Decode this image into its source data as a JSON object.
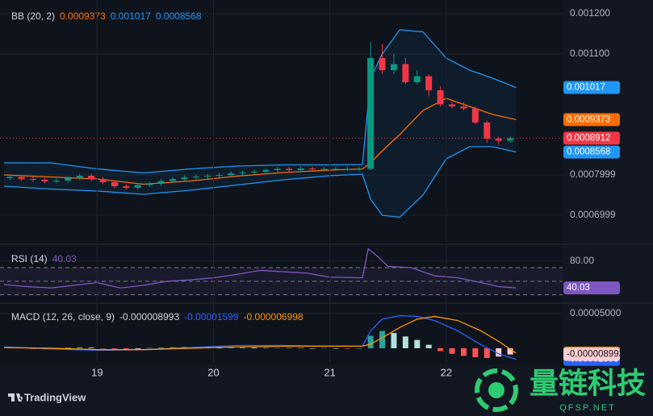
{
  "chart_data": [
    {
      "type": "candlestick",
      "title": "BB (20, 2)",
      "x": [
        18.25,
        18.35,
        18.45,
        18.55,
        18.65,
        18.75,
        18.85,
        18.95,
        19.05,
        19.15,
        19.25,
        19.35,
        19.45,
        19.55,
        19.65,
        19.75,
        19.85,
        19.95,
        20.05,
        20.15,
        20.25,
        20.35,
        20.45,
        20.55,
        20.65,
        20.75,
        20.85,
        20.95,
        21.05,
        21.15,
        21.25,
        21.35,
        21.45,
        21.55,
        21.65,
        21.75,
        21.85,
        21.95,
        22.05,
        22.15,
        22.25,
        22.35,
        22.45,
        22.55
      ],
      "open": [
        0.000792,
        0.000795,
        0.00079,
        0.000788,
        0.000784,
        0.000786,
        0.000792,
        0.000798,
        0.00079,
        0.000782,
        0.000772,
        0.000768,
        0.000775,
        0.000778,
        0.000785,
        0.00079,
        0.000794,
        0.000796,
        0.000798,
        0.0008,
        0.000804,
        0.000806,
        0.000808,
        0.000812,
        0.000815,
        0.000812,
        0.000816,
        0.000814,
        0.000815,
        0.000815,
        0.000815,
        0.000815,
        0.00109,
        0.00106,
        0.001075,
        0.00103,
        0.001045,
        0.00101,
        0.000975,
        0.00097,
        0.000965,
        0.00093,
        0.00089,
        0.000885
      ],
      "high": [
        0.0008,
        0.0008,
        0.000795,
        0.000793,
        0.000791,
        0.000797,
        0.000803,
        0.000803,
        0.000795,
        0.000787,
        0.000777,
        0.00078,
        0.000783,
        0.00079,
        0.000795,
        0.000799,
        0.000801,
        0.000803,
        0.000805,
        0.000809,
        0.000811,
        0.000813,
        0.000817,
        0.00082,
        0.00082,
        0.000821,
        0.000821,
        0.00082,
        0.00082,
        0.00082,
        0.00082,
        0.00113,
        0.001125,
        0.0011,
        0.00109,
        0.00106,
        0.00105,
        0.00102,
        0.00098,
        0.00098,
        0.00097,
        0.000935,
        0.000895,
        0.000896
      ],
      "low": [
        0.000787,
        0.000785,
        0.000783,
        0.000779,
        0.000779,
        0.000781,
        0.000787,
        0.000785,
        0.000777,
        0.000767,
        0.000763,
        0.000763,
        0.00077,
        0.000773,
        0.00078,
        0.000785,
        0.000789,
        0.000791,
        0.000793,
        0.000795,
        0.000799,
        0.000801,
        0.000803,
        0.000807,
        0.000807,
        0.000807,
        0.000809,
        0.000809,
        0.00081,
        0.00081,
        0.00081,
        0.000812,
        0.00105,
        0.00105,
        0.001025,
        0.001025,
        0.000995,
        0.00097,
        0.000965,
        0.00096,
        0.000925,
        0.00088,
        0.000875,
        0.00088
      ],
      "close": [
        0.000795,
        0.00079,
        0.000788,
        0.000784,
        0.000786,
        0.000792,
        0.000798,
        0.00079,
        0.000782,
        0.000772,
        0.000768,
        0.000775,
        0.000778,
        0.000785,
        0.00079,
        0.000794,
        0.000796,
        0.000798,
        0.0008,
        0.000804,
        0.000806,
        0.000808,
        0.000812,
        0.000815,
        0.000812,
        0.000816,
        0.000814,
        0.000815,
        0.000815,
        0.000815,
        0.000815,
        0.00109,
        0.00106,
        0.001075,
        0.00103,
        0.001045,
        0.00101,
        0.000975,
        0.00097,
        0.000965,
        0.00093,
        0.00089,
        0.000885,
        0.0008912
      ],
      "up_color": "#089981",
      "down_color": "#f23645",
      "series": [
        {
          "color": "#ff6d00",
          "x": [
            18.2,
            18.6,
            19.0,
            19.4,
            19.8,
            20.2,
            20.6,
            21.0,
            21.28,
            21.35,
            21.45,
            21.6,
            21.8,
            22.0,
            22.2,
            22.4,
            22.6
          ],
          "values": [
            0.0008,
            0.000795,
            0.00079,
            0.000777,
            0.000785,
            0.000797,
            0.000806,
            0.000812,
            0.000815,
            0.00083,
            0.00086,
            0.0009,
            0.00096,
            0.00099,
            0.00097,
            0.00095,
            0.0009373
          ]
        },
        {
          "color": "#2196f3",
          "x": [
            18.2,
            18.6,
            19.0,
            19.4,
            19.8,
            20.2,
            20.6,
            21.0,
            21.28,
            21.35,
            21.45,
            21.6,
            21.8,
            22.0,
            22.2,
            22.4,
            22.6
          ],
          "values": [
            0.00083,
            0.00083,
            0.000815,
            0.000805,
            0.000815,
            0.000822,
            0.000825,
            0.000825,
            0.000826,
            0.00104,
            0.0011,
            0.00116,
            0.001155,
            0.00109,
            0.00106,
            0.00104,
            0.001017
          ]
        },
        {
          "color": "#2196f3",
          "x": [
            18.2,
            18.6,
            19.0,
            19.4,
            19.8,
            20.2,
            20.6,
            21.0,
            21.28,
            21.35,
            21.45,
            21.6,
            21.8,
            22.0,
            22.2,
            22.4,
            22.6
          ],
          "values": [
            0.000772,
            0.000765,
            0.00076,
            0.000752,
            0.000762,
            0.000775,
            0.000788,
            0.000798,
            0.000802,
            0.00074,
            0.0007,
            0.000695,
            0.00075,
            0.00084,
            0.00087,
            0.00087,
            0.0008568
          ]
        }
      ],
      "band_fill": "rgba(33,150,243,0.07)",
      "xlim": [
        18.2,
        23.0
      ],
      "ylim": [
        0.000634,
        0.001224
      ],
      "yticks": [
        {
          "value": 0.0012,
          "label": "0.001200"
        },
        {
          "value": 0.0011,
          "label": "0.001100"
        },
        {
          "value": 0.0007999,
          "label": "0.0007999"
        },
        {
          "value": 0.0006999,
          "label": "0.0006999"
        }
      ],
      "grid": true
    },
    {
      "type": "line",
      "title": "RSI (14)",
      "series": [
        {
          "color": "#7e57c2",
          "x": [
            18.2,
            18.4,
            18.6,
            18.8,
            19.0,
            19.2,
            19.4,
            19.6,
            19.8,
            20.0,
            20.2,
            20.4,
            20.6,
            20.8,
            21.0,
            21.28,
            21.33,
            21.4,
            21.5,
            21.7,
            21.9,
            22.1,
            22.3,
            22.45,
            22.6
          ],
          "values": [
            45,
            42,
            40,
            44,
            48,
            40,
            44,
            50,
            52,
            55,
            60,
            66,
            64,
            62,
            56,
            55,
            98,
            88,
            72,
            70,
            58,
            55,
            48,
            42,
            40.03
          ]
        }
      ],
      "levels": [
        70,
        50,
        30
      ],
      "band_fill": "rgba(126,87,194,0.1)",
      "xlim": [
        18.2,
        23.0
      ],
      "ylim": [
        20,
        101
      ],
      "yticks": [
        {
          "value": 80,
          "label": "80.00"
        }
      ],
      "grid": true
    },
    {
      "type": "macd",
      "title": "MACD (12, 26, close, 9)",
      "histogram": {
        "colors": [
          "#26a69a",
          "#b2dfdb",
          "#ff5252",
          "#ffcdd2"
        ],
        "x": [
          18.25,
          18.35,
          18.45,
          18.55,
          18.65,
          18.75,
          18.85,
          18.95,
          19.05,
          19.15,
          19.25,
          19.35,
          19.45,
          19.55,
          19.65,
          19.75,
          19.85,
          19.95,
          20.05,
          20.15,
          20.25,
          20.35,
          20.45,
          20.55,
          20.65,
          20.75,
          20.85,
          20.95,
          21.05,
          21.15,
          21.25,
          21.35,
          21.45,
          21.55,
          21.65,
          21.75,
          21.85,
          21.95,
          22.05,
          22.15,
          22.25,
          22.35,
          22.45,
          22.55
        ],
        "values": [
          1e-06,
          5e-07,
          -1e-06,
          -1.5e-06,
          -1e-06,
          1e-06,
          1.5e-06,
          1e-06,
          -5e-07,
          -1e-06,
          -1.5e-06,
          -1e-06,
          5e-07,
          1e-06,
          1.5e-06,
          2e-06,
          2e-06,
          1.5e-06,
          1e-06,
          1e-06,
          1.5e-06,
          1e-06,
          5e-07,
          5e-07,
          1e-06,
          5e-07,
          0,
          5e-07,
          0,
          -5e-07,
          0,
          1.8e-05,
          2.5e-05,
          2.2e-05,
          1.7e-05,
          1.2e-05,
          5e-06,
          -4e-06,
          -8e-06,
          -1.1e-05,
          -1.3e-05,
          -1.4e-05,
          -1.2e-05,
          -8.993e-06
        ]
      },
      "series": [
        {
          "color": "#2962ff",
          "x": [
            18.2,
            18.6,
            19.0,
            19.4,
            19.8,
            20.2,
            20.6,
            21.0,
            21.28,
            21.35,
            21.45,
            21.6,
            21.75,
            21.9,
            22.1,
            22.3,
            22.45,
            22.6
          ],
          "values": [
            2e-06,
            -1e-06,
            -3e-06,
            -2e-06,
            1e-06,
            4e-06,
            4e-06,
            3e-06,
            3e-06,
            2.5e-05,
            4.2e-05,
            4.7e-05,
            4.6e-05,
            4e-05,
            2.5e-05,
            5e-06,
            -8e-06,
            -1.599e-05
          ]
        },
        {
          "color": "#ff9800",
          "x": [
            18.2,
            18.6,
            19.0,
            19.4,
            19.8,
            20.2,
            20.6,
            21.0,
            21.28,
            21.35,
            21.45,
            21.6,
            21.75,
            21.9,
            22.1,
            22.3,
            22.45,
            22.6
          ],
          "values": [
            1e-06,
            0,
            -2e-06,
            -2e-06,
            0,
            2e-06,
            3e-06,
            3e-06,
            3e-06,
            6e-06,
            1.5e-05,
            3e-05,
            4.2e-05,
            4.6e-05,
            4e-05,
            2.5e-05,
            1e-05,
            -6.998e-06
          ]
        }
      ],
      "xlim": [
        18.2,
        23.0
      ],
      "ylim": [
        -2.1e-05,
        6.28e-05
      ],
      "yticks": [
        {
          "value": 5e-05,
          "label": "0.00005000"
        }
      ],
      "xticks": [
        19,
        20,
        21,
        22
      ],
      "grid": true
    }
  ],
  "branding": "TradingView",
  "watermark": {
    "title": "量链科技",
    "subtitle": "QFSP.NET"
  }
}
